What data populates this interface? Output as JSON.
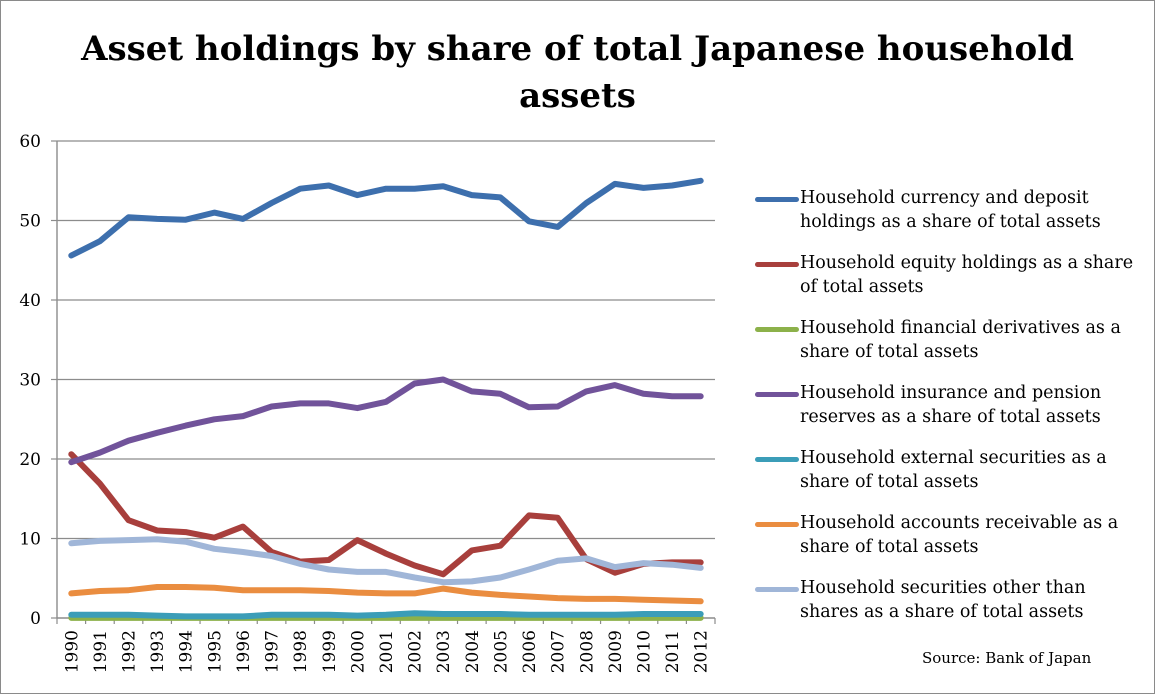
{
  "chart_data": {
    "type": "line",
    "title": "Asset holdings by share of total Japanese household assets",
    "xlabel": "",
    "ylabel": "",
    "ylim": [
      0,
      60
    ],
    "yticks": [
      "0",
      "10",
      "20",
      "30",
      "40",
      "50",
      "60"
    ],
    "grid": true,
    "legend_position": "right",
    "categories": [
      "1990",
      "1991",
      "1992",
      "1993",
      "1994",
      "1995",
      "1996",
      "1997",
      "1998",
      "1999",
      "2000",
      "2001",
      "2002",
      "2003",
      "2004",
      "2005",
      "2006",
      "2007",
      "2008",
      "2009",
      "2010",
      "2011",
      "2012"
    ],
    "series": [
      {
        "name": "Household currency and deposit holdings as a share of total assets",
        "color": "#3d6fad",
        "values": [
          45.6,
          47.4,
          50.4,
          50.2,
          50.1,
          51.0,
          50.2,
          52.2,
          54.0,
          54.4,
          53.2,
          54.0,
          54.0,
          54.3,
          53.2,
          52.9,
          49.9,
          49.2,
          52.2,
          54.6,
          54.1,
          54.4,
          55.0
        ]
      },
      {
        "name": "Household equity holdings as a share of total assets",
        "color": "#a83f3c",
        "values": [
          20.6,
          16.9,
          12.3,
          11.0,
          10.8,
          10.1,
          11.5,
          8.3,
          7.1,
          7.3,
          9.8,
          8.1,
          6.6,
          5.5,
          8.5,
          9.1,
          12.9,
          12.6,
          7.4,
          5.7,
          6.8,
          7.0,
          7.0
        ]
      },
      {
        "name": "Household financial derivatives as a share of total assets",
        "color": "#8cb14a",
        "values": [
          0.01,
          0.01,
          0.01,
          0.01,
          0.01,
          0.01,
          0.01,
          0.01,
          0.01,
          0.01,
          0.01,
          0.01,
          0.01,
          0.01,
          0.01,
          0.01,
          0.01,
          0.01,
          0.01,
          0.01,
          0.01,
          0.01,
          0.01
        ]
      },
      {
        "name": "Household insurance and pension reserves as a share of total assets",
        "color": "#71539a",
        "values": [
          19.6,
          20.8,
          22.3,
          23.3,
          24.2,
          25.0,
          25.4,
          26.6,
          27.0,
          27.0,
          26.4,
          27.2,
          29.5,
          30.0,
          28.5,
          28.2,
          26.5,
          26.6,
          28.5,
          29.3,
          28.2,
          27.9,
          27.9
        ]
      },
      {
        "name": "Household external securities as a share of total assets",
        "color": "#3b9db8",
        "values": [
          0.4,
          0.4,
          0.4,
          0.3,
          0.2,
          0.2,
          0.2,
          0.4,
          0.4,
          0.4,
          0.3,
          0.4,
          0.6,
          0.5,
          0.5,
          0.5,
          0.4,
          0.4,
          0.4,
          0.4,
          0.5,
          0.5,
          0.5
        ]
      },
      {
        "name": "Household accounts receivable as a share of total assets",
        "color": "#ea8d40",
        "values": [
          3.1,
          3.4,
          3.5,
          3.9,
          3.9,
          3.8,
          3.5,
          3.5,
          3.5,
          3.4,
          3.2,
          3.1,
          3.1,
          3.7,
          3.2,
          2.9,
          2.7,
          2.5,
          2.4,
          2.4,
          2.3,
          2.2,
          2.1
        ]
      },
      {
        "name": "Household securities other than shares as a share of total assets",
        "color": "#a0b6d8",
        "values": [
          9.4,
          9.7,
          9.8,
          9.9,
          9.6,
          8.7,
          8.3,
          7.8,
          6.8,
          6.1,
          5.8,
          5.8,
          5.1,
          4.5,
          4.6,
          5.1,
          6.1,
          7.2,
          7.5,
          6.4,
          6.9,
          6.7,
          6.3
        ]
      }
    ],
    "annotations": [
      "Source: Bank of Japan"
    ]
  }
}
